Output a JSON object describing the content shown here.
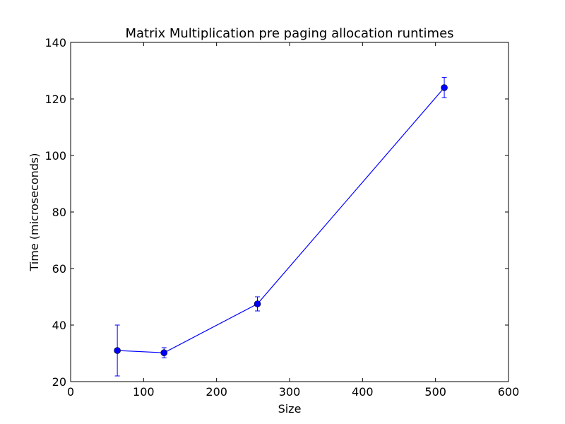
{
  "chart_data": {
    "type": "line",
    "title": "Matrix Multiplication pre paging allocation runtimes",
    "xlabel": "Size",
    "ylabel": "Time (microseconds)",
    "xlim": [
      0,
      600
    ],
    "ylim": [
      20,
      140
    ],
    "xticks": [
      0,
      100,
      200,
      300,
      400,
      500,
      600
    ],
    "yticks": [
      20,
      40,
      60,
      80,
      100,
      120,
      140
    ],
    "xtick_labels": [
      "0",
      "100",
      "200",
      "300",
      "400",
      "500",
      "600"
    ],
    "ytick_labels": [
      "20",
      "40",
      "60",
      "80",
      "100",
      "120",
      "140"
    ],
    "grid": false,
    "legend": "none",
    "series": [
      {
        "color": "#0000ff",
        "marker": "circle",
        "x": [
          64,
          128,
          256,
          512
        ],
        "y": [
          31,
          30.2,
          47.5,
          124
        ],
        "error": [
          9,
          1.8,
          2.5,
          3.6
        ]
      }
    ]
  }
}
